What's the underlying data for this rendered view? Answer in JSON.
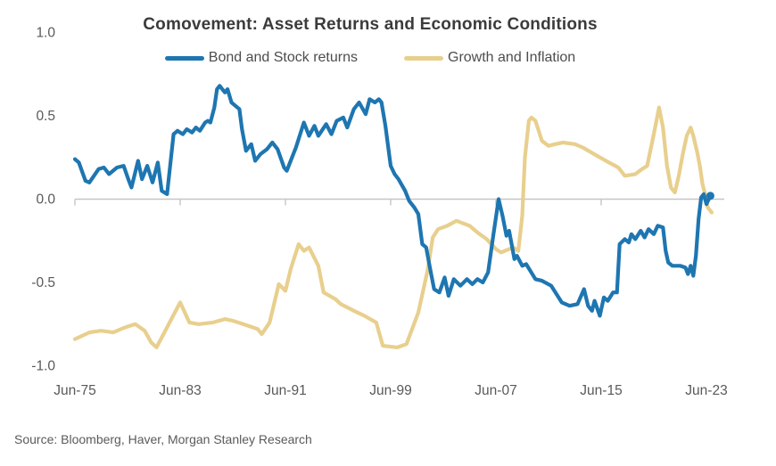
{
  "source": "Source: Bloomberg, Haver, Morgan Stanley Research",
  "colors": {
    "bond_stock_line": "#1e76b1",
    "growth_inflation_line": "#e8cf8d",
    "axis_line": "#c6c6c6",
    "tick_text": "#595959",
    "title_text": "#3b3b3b",
    "legend_text": "#4d4d4d",
    "source_text": "#5a5a5a",
    "background": "#ffffff"
  },
  "chart_data": {
    "type": "line",
    "title": "Comovement: Asset Returns and Economic Conditions",
    "xlabel": "",
    "ylabel": "",
    "grid": "zero-line-only",
    "legend_position": "top-center",
    "x_axis": {
      "tick_labels": [
        "Jun-75",
        "Jun-83",
        "Jun-91",
        "Jun-99",
        "Jun-07",
        "Jun-15",
        "Jun-23"
      ],
      "tick_years": [
        1975,
        1983,
        1991,
        1999,
        2007,
        2015,
        2023
      ],
      "range_years": [
        1975,
        2023.5
      ]
    },
    "y_axis": {
      "tick_values": [
        1.0,
        0.5,
        0.0,
        -0.5,
        -1.0
      ],
      "tick_labels": [
        "1.0",
        "0.5",
        "0.0",
        "-0.5",
        "-1.0"
      ],
      "range": [
        -1.0,
        1.0
      ]
    },
    "series": [
      {
        "name": "Growth and Inflation",
        "color": "#e8cf8d",
        "end_marker": false,
        "points": [
          [
            1975.0,
            -0.84
          ],
          [
            1976.1,
            -0.8
          ],
          [
            1977.0,
            -0.79
          ],
          [
            1977.9,
            -0.8
          ],
          [
            1978.8,
            -0.77
          ],
          [
            1979.6,
            -0.75
          ],
          [
            1980.3,
            -0.79
          ],
          [
            1980.8,
            -0.86
          ],
          [
            1981.2,
            -0.89
          ],
          [
            1982.2,
            -0.74
          ],
          [
            1983.0,
            -0.62
          ],
          [
            1983.7,
            -0.74
          ],
          [
            1984.4,
            -0.75
          ],
          [
            1985.5,
            -0.74
          ],
          [
            1986.4,
            -0.72
          ],
          [
            1987.0,
            -0.73
          ],
          [
            1987.8,
            -0.75
          ],
          [
            1988.9,
            -0.78
          ],
          [
            1989.2,
            -0.81
          ],
          [
            1989.8,
            -0.74
          ],
          [
            1990.5,
            -0.51
          ],
          [
            1991.0,
            -0.55
          ],
          [
            1991.4,
            -0.42
          ],
          [
            1992.0,
            -0.27
          ],
          [
            1992.4,
            -0.31
          ],
          [
            1992.8,
            -0.29
          ],
          [
            1993.5,
            -0.4
          ],
          [
            1993.9,
            -0.56
          ],
          [
            1994.8,
            -0.6
          ],
          [
            1995.2,
            -0.63
          ],
          [
            1996.2,
            -0.67
          ],
          [
            1997.0,
            -0.7
          ],
          [
            1997.9,
            -0.74
          ],
          [
            1998.4,
            -0.88
          ],
          [
            1999.5,
            -0.89
          ],
          [
            2000.2,
            -0.87
          ],
          [
            2001.1,
            -0.68
          ],
          [
            2001.8,
            -0.43
          ],
          [
            2002.2,
            -0.23
          ],
          [
            2002.6,
            -0.18
          ],
          [
            2003.3,
            -0.16
          ],
          [
            2004.0,
            -0.13
          ],
          [
            2005.0,
            -0.16
          ],
          [
            2005.6,
            -0.2
          ],
          [
            2006.3,
            -0.24
          ],
          [
            2007.0,
            -0.3
          ],
          [
            2007.4,
            -0.32
          ],
          [
            2008.3,
            -0.29
          ],
          [
            2008.7,
            -0.31
          ],
          [
            2009.0,
            -0.1
          ],
          [
            2009.2,
            0.25
          ],
          [
            2009.5,
            0.47
          ],
          [
            2009.7,
            0.49
          ],
          [
            2010.0,
            0.47
          ],
          [
            2010.5,
            0.35
          ],
          [
            2011.0,
            0.32
          ],
          [
            2011.5,
            0.33
          ],
          [
            2012.1,
            0.34
          ],
          [
            2013.0,
            0.33
          ],
          [
            2013.6,
            0.31
          ],
          [
            2014.7,
            0.26
          ],
          [
            2015.6,
            0.22
          ],
          [
            2016.3,
            0.19
          ],
          [
            2016.8,
            0.14
          ],
          [
            2017.6,
            0.15
          ],
          [
            2018.1,
            0.18
          ],
          [
            2018.5,
            0.2
          ],
          [
            2019.0,
            0.39
          ],
          [
            2019.4,
            0.55
          ],
          [
            2019.7,
            0.43
          ],
          [
            2020.0,
            0.2
          ],
          [
            2020.3,
            0.07
          ],
          [
            2020.6,
            0.04
          ],
          [
            2020.9,
            0.14
          ],
          [
            2021.2,
            0.27
          ],
          [
            2021.5,
            0.38
          ],
          [
            2021.8,
            0.43
          ],
          [
            2022.0,
            0.38
          ],
          [
            2022.3,
            0.28
          ],
          [
            2022.5,
            0.2
          ],
          [
            2022.7,
            0.09
          ],
          [
            2022.9,
            0.03
          ],
          [
            2023.1,
            -0.05
          ],
          [
            2023.4,
            -0.08
          ]
        ]
      },
      {
        "name": "Bond and Stock returns",
        "color": "#1e76b1",
        "end_marker": true,
        "points": [
          [
            1975.0,
            0.24
          ],
          [
            1975.3,
            0.22
          ],
          [
            1975.8,
            0.11
          ],
          [
            1976.1,
            0.1
          ],
          [
            1976.8,
            0.18
          ],
          [
            1977.2,
            0.19
          ],
          [
            1977.6,
            0.15
          ],
          [
            1978.2,
            0.19
          ],
          [
            1978.7,
            0.2
          ],
          [
            1979.1,
            0.11
          ],
          [
            1979.3,
            0.07
          ],
          [
            1979.8,
            0.23
          ],
          [
            1980.1,
            0.12
          ],
          [
            1980.5,
            0.2
          ],
          [
            1980.9,
            0.1
          ],
          [
            1981.3,
            0.22
          ],
          [
            1981.6,
            0.05
          ],
          [
            1982.0,
            0.03
          ],
          [
            1982.5,
            0.39
          ],
          [
            1982.8,
            0.41
          ],
          [
            1983.2,
            0.39
          ],
          [
            1983.5,
            0.42
          ],
          [
            1983.9,
            0.4
          ],
          [
            1984.2,
            0.43
          ],
          [
            1984.5,
            0.41
          ],
          [
            1984.9,
            0.46
          ],
          [
            1985.1,
            0.47
          ],
          [
            1985.3,
            0.46
          ],
          [
            1985.6,
            0.55
          ],
          [
            1985.8,
            0.66
          ],
          [
            1986.0,
            0.68
          ],
          [
            1986.2,
            0.66
          ],
          [
            1986.4,
            0.64
          ],
          [
            1986.6,
            0.66
          ],
          [
            1986.9,
            0.58
          ],
          [
            1987.2,
            0.56
          ],
          [
            1987.5,
            0.54
          ],
          [
            1987.7,
            0.42
          ],
          [
            1988.0,
            0.29
          ],
          [
            1988.4,
            0.33
          ],
          [
            1988.7,
            0.23
          ],
          [
            1989.1,
            0.27
          ],
          [
            1989.6,
            0.3
          ],
          [
            1990.0,
            0.34
          ],
          [
            1990.4,
            0.3
          ],
          [
            1990.9,
            0.19
          ],
          [
            1991.1,
            0.17
          ],
          [
            1991.8,
            0.31
          ],
          [
            1992.4,
            0.46
          ],
          [
            1992.8,
            0.38
          ],
          [
            1993.2,
            0.44
          ],
          [
            1993.5,
            0.38
          ],
          [
            1994.1,
            0.45
          ],
          [
            1994.5,
            0.39
          ],
          [
            1994.9,
            0.47
          ],
          [
            1995.4,
            0.49
          ],
          [
            1995.7,
            0.43
          ],
          [
            1996.2,
            0.54
          ],
          [
            1996.6,
            0.58
          ],
          [
            1997.1,
            0.51
          ],
          [
            1997.4,
            0.6
          ],
          [
            1997.8,
            0.58
          ],
          [
            1998.1,
            0.6
          ],
          [
            1998.3,
            0.58
          ],
          [
            1998.6,
            0.44
          ],
          [
            1999.0,
            0.2
          ],
          [
            1999.3,
            0.15
          ],
          [
            1999.6,
            0.12
          ],
          [
            2000.1,
            0.05
          ],
          [
            2000.4,
            -0.01
          ],
          [
            2000.8,
            -0.05
          ],
          [
            2001.1,
            -0.09
          ],
          [
            2001.4,
            -0.27
          ],
          [
            2001.7,
            -0.29
          ],
          [
            2002.0,
            -0.42
          ],
          [
            2002.3,
            -0.54
          ],
          [
            2002.7,
            -0.56
          ],
          [
            2003.1,
            -0.47
          ],
          [
            2003.4,
            -0.58
          ],
          [
            2003.8,
            -0.48
          ],
          [
            2004.3,
            -0.52
          ],
          [
            2004.8,
            -0.48
          ],
          [
            2005.2,
            -0.51
          ],
          [
            2005.6,
            -0.48
          ],
          [
            2006.0,
            -0.5
          ],
          [
            2006.4,
            -0.44
          ],
          [
            2006.8,
            -0.22
          ],
          [
            2007.2,
            0.0
          ],
          [
            2007.5,
            -0.1
          ],
          [
            2007.8,
            -0.22
          ],
          [
            2008.0,
            -0.19
          ],
          [
            2008.4,
            -0.36
          ],
          [
            2008.6,
            -0.34
          ],
          [
            2009.0,
            -0.4
          ],
          [
            2009.3,
            -0.39
          ],
          [
            2010.0,
            -0.48
          ],
          [
            2010.5,
            -0.49
          ],
          [
            2011.2,
            -0.52
          ],
          [
            2012.0,
            -0.62
          ],
          [
            2012.6,
            -0.64
          ],
          [
            2013.2,
            -0.63
          ],
          [
            2013.7,
            -0.54
          ],
          [
            2014.0,
            -0.64
          ],
          [
            2014.3,
            -0.67
          ],
          [
            2014.5,
            -0.61
          ],
          [
            2014.9,
            -0.7
          ],
          [
            2015.2,
            -0.59
          ],
          [
            2015.5,
            -0.61
          ],
          [
            2015.9,
            -0.56
          ],
          [
            2016.2,
            -0.56
          ],
          [
            2016.4,
            -0.27
          ],
          [
            2016.8,
            -0.24
          ],
          [
            2017.1,
            -0.26
          ],
          [
            2017.3,
            -0.21
          ],
          [
            2017.6,
            -0.24
          ],
          [
            2018.0,
            -0.19
          ],
          [
            2018.3,
            -0.23
          ],
          [
            2018.6,
            -0.18
          ],
          [
            2019.0,
            -0.21
          ],
          [
            2019.3,
            -0.16
          ],
          [
            2019.7,
            -0.17
          ],
          [
            2019.9,
            -0.31
          ],
          [
            2020.1,
            -0.38
          ],
          [
            2020.4,
            -0.4
          ],
          [
            2021.0,
            -0.4
          ],
          [
            2021.4,
            -0.41
          ],
          [
            2021.6,
            -0.45
          ],
          [
            2021.8,
            -0.4
          ],
          [
            2022.0,
            -0.46
          ],
          [
            2022.2,
            -0.34
          ],
          [
            2022.4,
            -0.12
          ],
          [
            2022.6,
            0.01
          ],
          [
            2022.8,
            0.03
          ],
          [
            2023.0,
            -0.03
          ],
          [
            2023.3,
            0.02
          ]
        ]
      }
    ]
  }
}
